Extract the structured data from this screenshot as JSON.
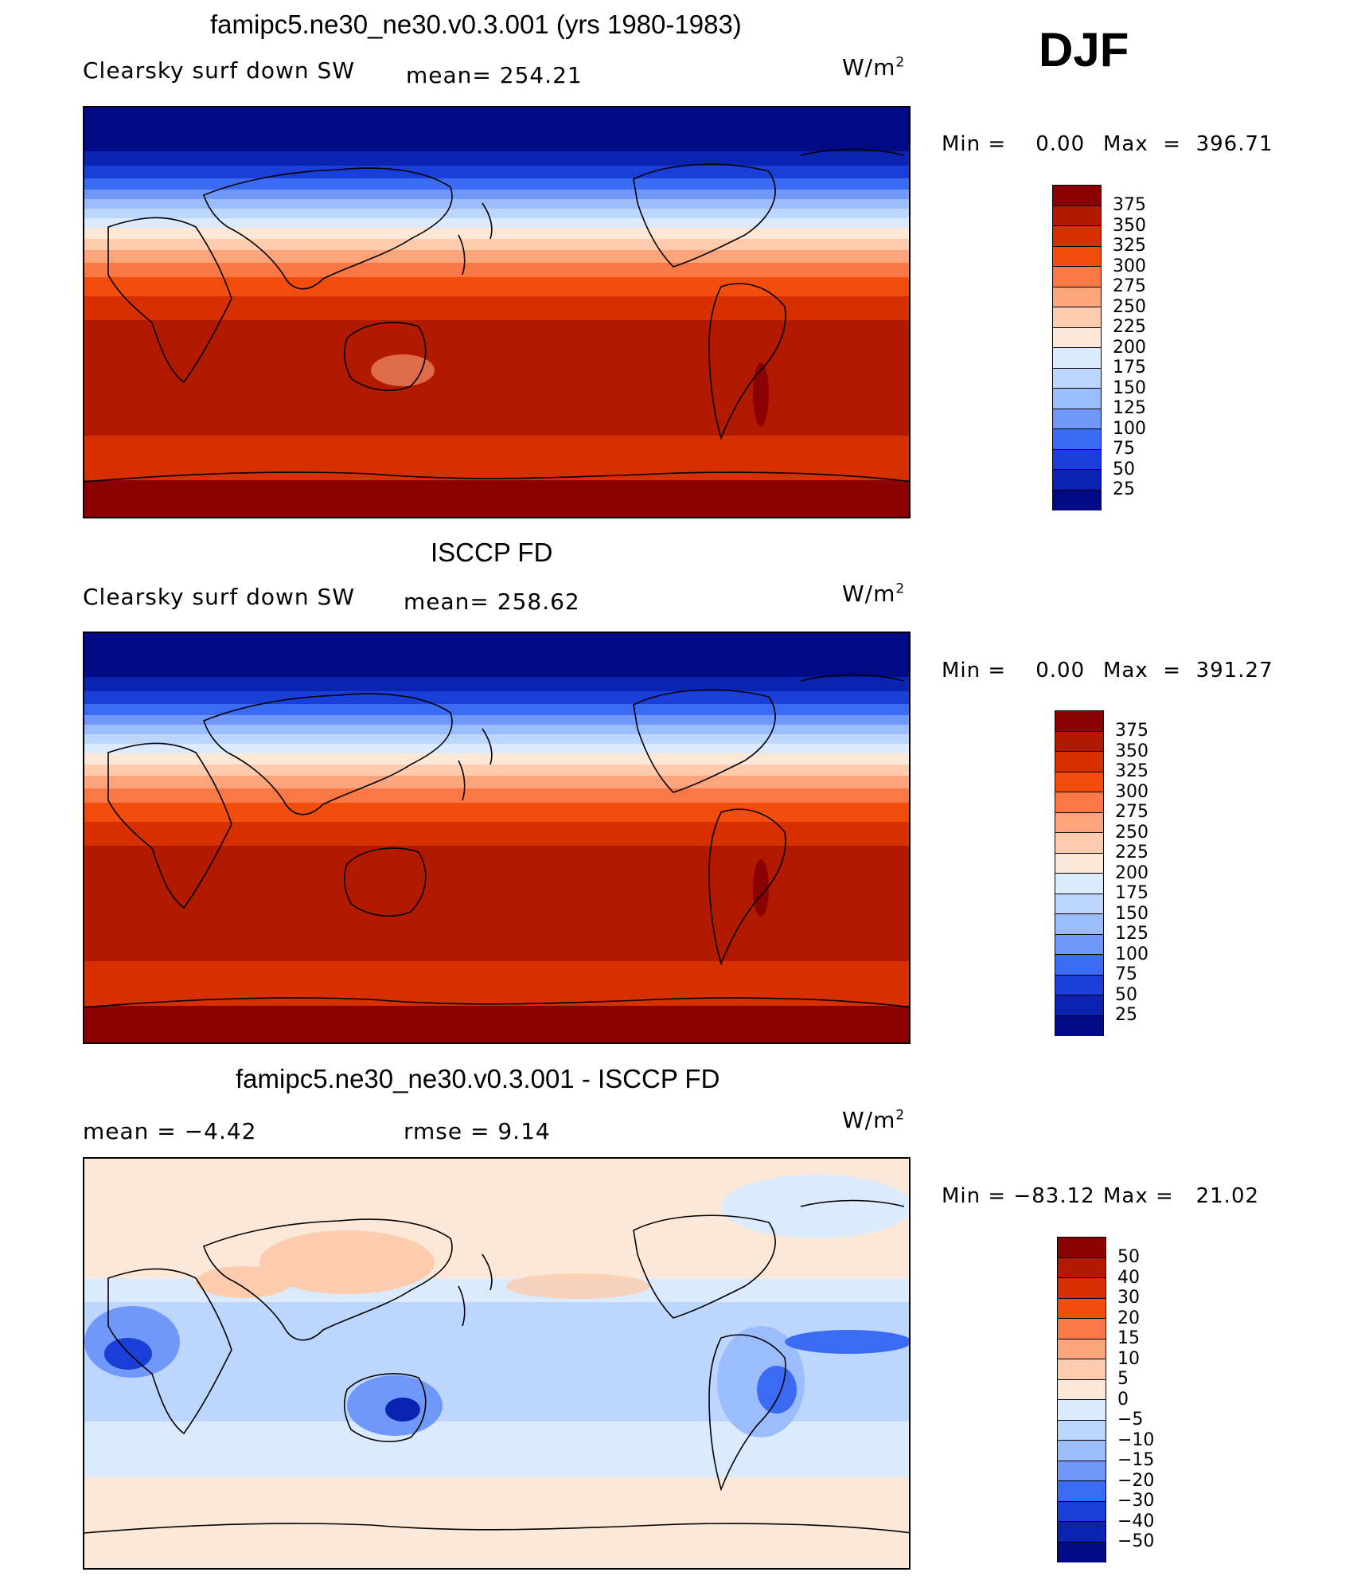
{
  "season": "DJF",
  "panels": [
    {
      "title": "famipc5.ne30_ne30.v0.3.001 (yrs 1980-1983)",
      "left_label": "Clearsky surf down SW",
      "center_label": "mean= 254.21",
      "units_base": "W/m",
      "units_exp": "2",
      "min_label": "Min =    0.00",
      "max_label": "Max  =  396.71"
    },
    {
      "title": "ISCCP FD",
      "left_label": "Clearsky surf down SW",
      "center_label": "mean= 258.62",
      "units_base": "W/m",
      "units_exp": "2",
      "min_label": "Min =    0.00",
      "max_label": "Max  =  391.27"
    },
    {
      "title": "famipc5.ne30_ne30.v0.3.001 - ISCCP FD",
      "left_label": "mean =   −4.42",
      "center_label": "rmse =    9.14",
      "units_base": "W/m",
      "units_exp": "2",
      "min_label": "Min = −83.12",
      "max_label": "Max =   21.02"
    }
  ],
  "colorbar_abs": {
    "levels": [
      "375",
      "350",
      "325",
      "300",
      "275",
      "250",
      "225",
      "200",
      "175",
      "150",
      "125",
      "100",
      "75",
      "50",
      "25"
    ],
    "colors": [
      "#8b0000",
      "#b21a00",
      "#d63000",
      "#f24d0d",
      "#fa7846",
      "#fca47c",
      "#fdcbad",
      "#fde8d8",
      "#dbeafd",
      "#bcd6fd",
      "#9bbcfd",
      "#6f98fa",
      "#3b6bf2",
      "#1a3fd9",
      "#0a23b0",
      "#000b85"
    ]
  },
  "colorbar_diff": {
    "levels": [
      "50",
      "40",
      "30",
      "20",
      "15",
      "10",
      "5",
      "0",
      "−5",
      "−10",
      "−15",
      "−20",
      "−30",
      "−40",
      "−50"
    ],
    "colors": [
      "#8b0000",
      "#b21a00",
      "#d63000",
      "#f24d0d",
      "#fa7846",
      "#fca47c",
      "#fdcbad",
      "#fde8d8",
      "#dbeafd",
      "#bcd6fd",
      "#9bbcfd",
      "#6f98fa",
      "#3b6bf2",
      "#1a3fd9",
      "#0a23b0",
      "#000b85"
    ]
  }
}
